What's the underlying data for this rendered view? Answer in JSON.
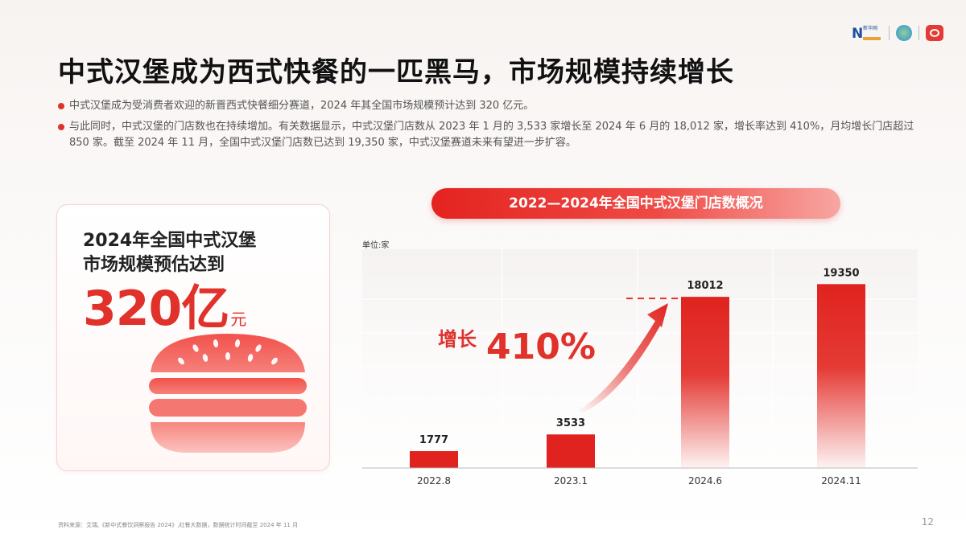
{
  "title": "中式汉堡成为西式快餐的一匹黑马，市场规模持续增长",
  "bullets": [
    "中式汉堡成为受消费者欢迎的新晋西式快餐细分赛道，2024 年其全国市场规模预计达到 320 亿元。",
    "与此同时，中式汉堡的门店数也在持续增加。有关数据显示，中式汉堡门店数从 2023 年 1 月的 3,533 家增长至 2024 年 6 月的 18,012 家，增长率达到 410%，月均增长门店超过 850 家。截至 2024 年 11 月，全国中式汉堡门店数已达到 19,350 家，中式汉堡赛道未来有望进一步扩容。"
  ],
  "card": {
    "line1": "2024年全国中式汉堡",
    "line2": "市场规模预估达到",
    "value": "320亿",
    "unit": "元"
  },
  "logos": {
    "logo_a_letter": "N",
    "logo_a_text": "新华网"
  },
  "chart_data": {
    "type": "bar",
    "title": "2022—2024年全国中式汉堡门店数概况",
    "unit_label": "单位:家",
    "categories": [
      "2022.8",
      "2023.1",
      "2024.6",
      "2024.11"
    ],
    "values": [
      1777,
      3533,
      18012,
      19350
    ],
    "ylim": [
      0,
      22000
    ],
    "grid": true,
    "annotation": {
      "prefix": "增长",
      "value": "410%",
      "from": "2023.1",
      "to": "2024.6"
    },
    "colors": {
      "bar": "#e0231f",
      "accent": "#e0312b"
    }
  },
  "source": "资料来源：艾瑞,《新中式餐饮洞察报告 2024》,红餐大数据，数据统计时间截至 2024 年 11 月",
  "page_number": "12"
}
